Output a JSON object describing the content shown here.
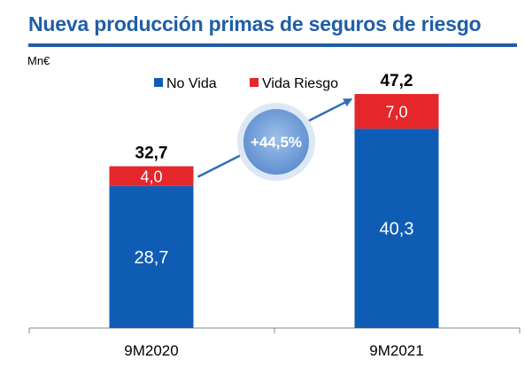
{
  "header": {
    "title": "Nueva producción primas de seguros de riesgo",
    "unit": "Mn€"
  },
  "colors": {
    "title": "#1f5ea8",
    "no_vida": "#0f5cb5",
    "vida_riesgo": "#e5262a",
    "growth_bubble": "#7aa3da",
    "arrow": "#2f6fb8"
  },
  "chart_data": {
    "type": "bar",
    "stacked": true,
    "categories": [
      "9M2020",
      "9M2021"
    ],
    "series": [
      {
        "name": "No Vida",
        "values": [
          28.7,
          40.3
        ],
        "labels": [
          "28,7",
          "40,3"
        ]
      },
      {
        "name": "Vida Riesgo",
        "values": [
          4.0,
          7.0
        ],
        "labels": [
          "4,0",
          "7,0"
        ]
      }
    ],
    "totals": [
      32.7,
      47.2
    ],
    "total_labels": [
      "32,7",
      "47,2"
    ],
    "legend": [
      "No Vida",
      "Vida Riesgo"
    ],
    "legend_position": "top-center",
    "annotation": "+44,5%",
    "ylim": [
      0,
      50
    ],
    "grid": false
  }
}
